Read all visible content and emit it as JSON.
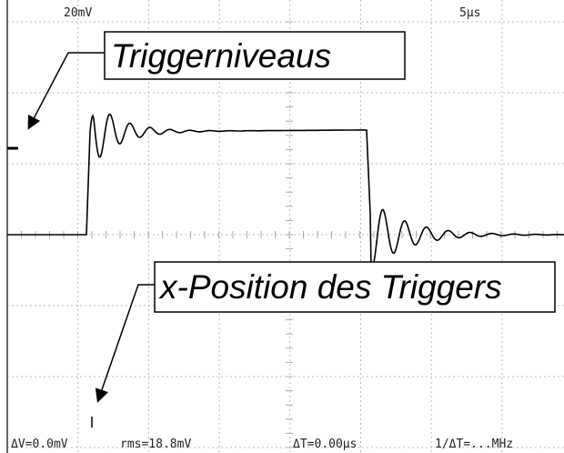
{
  "scope": {
    "volts_per_div": "20mV",
    "time_per_div": "5µs"
  },
  "annotations": {
    "trigger_level": "Triggerniveaus",
    "trigger_position": "x-Position des Triggers"
  },
  "status": {
    "delta_v": "ΔV=0.0mV",
    "rms": "rms=18.8mV",
    "delta_t": "ΔT=0.00µs",
    "frequency": "1/ΔT=...MHz"
  }
}
